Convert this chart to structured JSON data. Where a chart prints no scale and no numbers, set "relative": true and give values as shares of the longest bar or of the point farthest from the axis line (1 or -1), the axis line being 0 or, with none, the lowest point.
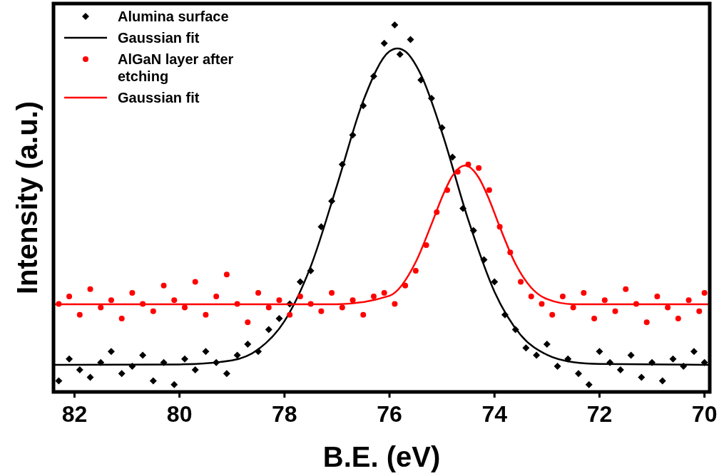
{
  "chart_data": {
    "type": "scatter",
    "xlabel": "B.E. (eV)",
    "ylabel": "Intensity (a.u.)",
    "relative": true,
    "xlim": [
      82.4,
      69.9
    ],
    "xticks": [
      82,
      80,
      78,
      76,
      74,
      72,
      70
    ],
    "legend": "top left",
    "grid": false,
    "series": [
      {
        "name": "Alumina surface",
        "marker": "diamond",
        "color": "#000000",
        "x": [
          82.3,
          82.1,
          81.9,
          81.7,
          81.5,
          81.3,
          81.1,
          80.9,
          80.7,
          80.5,
          80.3,
          80.1,
          79.9,
          79.7,
          79.5,
          79.3,
          79.1,
          78.9,
          78.7,
          78.5,
          78.3,
          78.1,
          77.9,
          77.7,
          77.5,
          77.3,
          77.1,
          76.9,
          76.7,
          76.5,
          76.3,
          76.1,
          75.9,
          75.8,
          75.6,
          75.4,
          75.2,
          75.0,
          74.8,
          74.6,
          74.4,
          74.2,
          74.0,
          73.8,
          73.6,
          73.4,
          73.2,
          73.0,
          72.8,
          72.6,
          72.4,
          72.2,
          72.0,
          71.8,
          71.6,
          71.4,
          71.2,
          71.0,
          70.8,
          70.6,
          70.4,
          70.2,
          70.0
        ],
        "values": [
          0.03,
          0.09,
          0.06,
          0.04,
          0.08,
          0.11,
          0.05,
          0.07,
          0.1,
          0.03,
          0.08,
          0.02,
          0.09,
          0.06,
          0.11,
          0.08,
          0.05,
          0.1,
          0.13,
          0.11,
          0.17,
          0.2,
          0.24,
          0.3,
          0.33,
          0.45,
          0.52,
          0.62,
          0.7,
          0.78,
          0.86,
          0.95,
          1,
          0.92,
          0.96,
          0.85,
          0.8,
          0.72,
          0.64,
          0.5,
          0.44,
          0.36,
          0.3,
          0.21,
          0.17,
          0.12,
          0.1,
          0.13,
          0.07,
          0.09,
          0.05,
          0.02,
          0.11,
          0.08,
          0.06,
          0.1,
          0.04,
          0.08,
          0.03,
          0.09,
          0.07,
          0.11,
          0.08
        ]
      },
      {
        "name": "Gaussian fit",
        "type": "line",
        "color": "#000000",
        "x": [
          82.4,
          80,
          79,
          78.5,
          78,
          77.5,
          77,
          76.5,
          76,
          75.85,
          75.7,
          75.4,
          75,
          74.5,
          74,
          73.5,
          73,
          72.5,
          72,
          70,
          69.9
        ],
        "values": [
          0.074,
          0.075,
          0.086,
          0.116,
          0.193,
          0.342,
          0.563,
          0.793,
          0.928,
          0.936,
          0.928,
          0.864,
          0.707,
          0.469,
          0.273,
          0.155,
          0.101,
          0.081,
          0.076,
          0.074,
          0.074
        ]
      },
      {
        "name": "AlGaN layer after etching",
        "marker": "circle",
        "color": "#ff0000",
        "x": [
          82.3,
          82.1,
          81.9,
          81.7,
          81.5,
          81.3,
          81.1,
          80.9,
          80.7,
          80.5,
          80.3,
          80.1,
          79.9,
          79.7,
          79.5,
          79.3,
          79.1,
          78.9,
          78.7,
          78.5,
          78.3,
          78.1,
          77.9,
          77.7,
          77.5,
          77.3,
          77.1,
          76.9,
          76.7,
          76.5,
          76.3,
          76.1,
          75.9,
          75.7,
          75.5,
          75.3,
          75.1,
          74.9,
          74.7,
          74.5,
          74.3,
          74.1,
          73.9,
          73.7,
          73.5,
          73.3,
          73.1,
          72.9,
          72.7,
          72.5,
          72.3,
          72.1,
          71.9,
          71.7,
          71.5,
          71.3,
          71.1,
          70.9,
          70.7,
          70.5,
          70.3,
          70.1,
          70.0
        ],
        "values": [
          0.24,
          0.26,
          0.21,
          0.28,
          0.23,
          0.25,
          0.2,
          0.27,
          0.24,
          0.22,
          0.29,
          0.25,
          0.23,
          0.3,
          0.21,
          0.26,
          0.32,
          0.24,
          0.19,
          0.27,
          0.23,
          0.25,
          0.21,
          0.26,
          0.24,
          0.22,
          0.27,
          0.23,
          0.25,
          0.21,
          0.26,
          0.27,
          0.24,
          0.29,
          0.33,
          0.4,
          0.49,
          0.55,
          0.6,
          0.62,
          0.61,
          0.55,
          0.45,
          0.38,
          0.3,
          0.26,
          0.24,
          0.21,
          0.26,
          0.23,
          0.27,
          0.2,
          0.25,
          0.22,
          0.28,
          0.24,
          0.19,
          0.26,
          0.23,
          0.2,
          0.25,
          0.22,
          0.27
        ]
      },
      {
        "name": "Gaussian fit",
        "type": "line",
        "color": "#ff0000",
        "x": [
          82.4,
          77,
          76,
          75.5,
          75.2,
          75,
          74.8,
          74.56,
          74.3,
          74.1,
          73.9,
          73.6,
          73.3,
          73,
          72.5,
          69.9
        ],
        "values": [
          0.239,
          0.239,
          0.262,
          0.354,
          0.457,
          0.53,
          0.589,
          0.617,
          0.584,
          0.524,
          0.45,
          0.349,
          0.284,
          0.253,
          0.239,
          0.239
        ]
      }
    ]
  }
}
